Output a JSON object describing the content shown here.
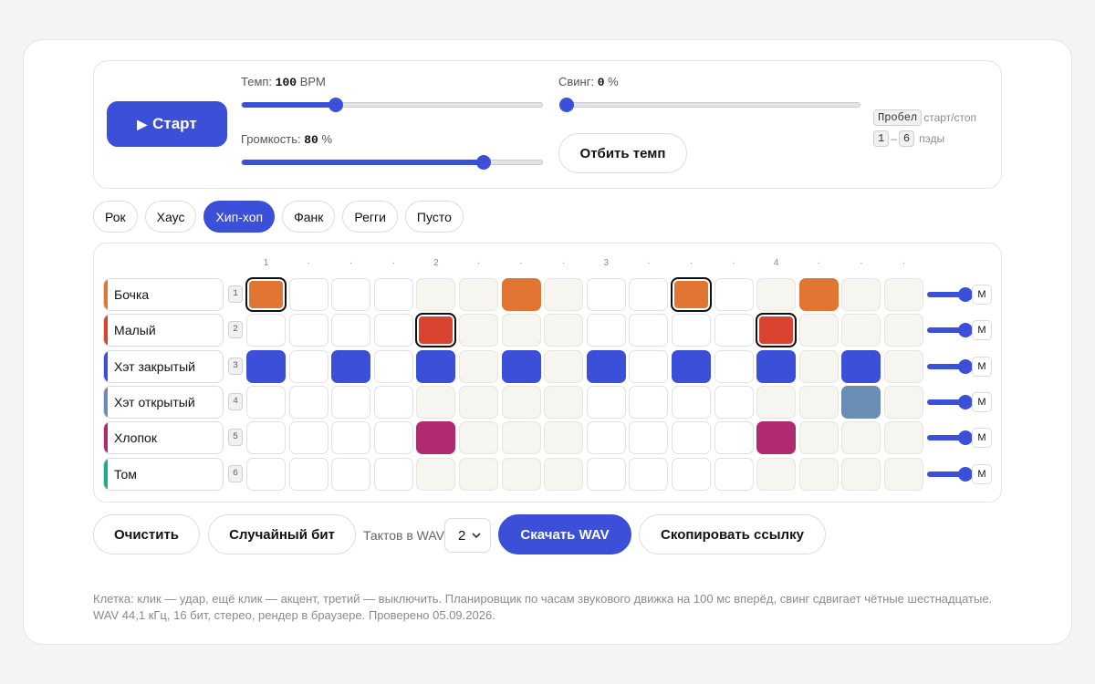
{
  "transport": {
    "start_label": "Старт",
    "tempo_label": "Темп:",
    "tempo_value": "100",
    "tempo_unit": "BPM",
    "tempo_fraction": 0.31,
    "swing_label": "Свинг:",
    "swing_value": "0",
    "swing_unit": "%",
    "swing_fraction": 0.0,
    "volume_label": "Громкость:",
    "volume_value": "80",
    "volume_unit": "%",
    "volume_fraction": 0.8,
    "tap_label": "Отбить темп"
  },
  "hints": {
    "space_key": "Пробел",
    "space_text": "старт/стоп",
    "key_from": "1",
    "key_sep": "–",
    "key_to": "6",
    "pads_text": "пэды"
  },
  "presets": [
    "Рок",
    "Хаус",
    "Хип-хоп",
    "Фанк",
    "Регги",
    "Пусто"
  ],
  "active_preset": 2,
  "step_labels": [
    "1",
    "·",
    "·",
    "·",
    "2",
    "·",
    "·",
    "·",
    "3",
    "·",
    "·",
    "·",
    "4",
    "·",
    "·",
    "·"
  ],
  "tracks": [
    {
      "name": "Бочка",
      "key": "1",
      "color": "#e07632",
      "steps": [
        2,
        0,
        0,
        0,
        0,
        0,
        1,
        0,
        0,
        0,
        2,
        0,
        0,
        1,
        0,
        0
      ],
      "volume": 1.0,
      "mute_label": "M"
    },
    {
      "name": "Малый",
      "key": "2",
      "color": "#d9432f",
      "steps": [
        0,
        0,
        0,
        0,
        2,
        0,
        0,
        0,
        0,
        0,
        0,
        0,
        2,
        0,
        0,
        0
      ],
      "volume": 1.0,
      "mute_label": "M"
    },
    {
      "name": "Хэт закрытый",
      "key": "3",
      "color": "#3b4fd8",
      "steps": [
        1,
        0,
        1,
        0,
        1,
        0,
        1,
        0,
        1,
        0,
        1,
        0,
        1,
        0,
        1,
        0
      ],
      "volume": 1.0,
      "mute_label": "M"
    },
    {
      "name": "Хэт открытый",
      "key": "4",
      "color": "#6a8db5",
      "steps": [
        0,
        0,
        0,
        0,
        0,
        0,
        0,
        0,
        0,
        0,
        0,
        0,
        0,
        0,
        1,
        0
      ],
      "volume": 1.0,
      "mute_label": "M"
    },
    {
      "name": "Хлопок",
      "key": "5",
      "color": "#b02a6f",
      "steps": [
        0,
        0,
        0,
        0,
        1,
        0,
        0,
        0,
        0,
        0,
        0,
        0,
        1,
        0,
        0,
        0
      ],
      "volume": 1.0,
      "mute_label": "M"
    },
    {
      "name": "Том",
      "key": "6",
      "color": "#1faa8f",
      "steps": [
        0,
        0,
        0,
        0,
        0,
        0,
        0,
        0,
        0,
        0,
        0,
        0,
        0,
        0,
        0,
        0
      ],
      "volume": 1.0,
      "mute_label": "M"
    }
  ],
  "actions": {
    "clear_label": "Очистить",
    "random_label": "Случайный бит",
    "bars_label": "Тактов в WAV",
    "bars_value": "2",
    "download_label": "Скачать WAV",
    "copy_link_label": "Скопировать ссылку"
  },
  "footnote": {
    "line1": "Клетка: клик — удар, ещё клик — акцент, третий — выключить. Планировщик по часам звукового движка на 100 мс вперёд, свинг сдвигает чётные шестнадцатые.",
    "line2": "WAV 44,1 кГц, 16 бит, стерео, рендер в браузере. Проверено 05.09.2026."
  }
}
